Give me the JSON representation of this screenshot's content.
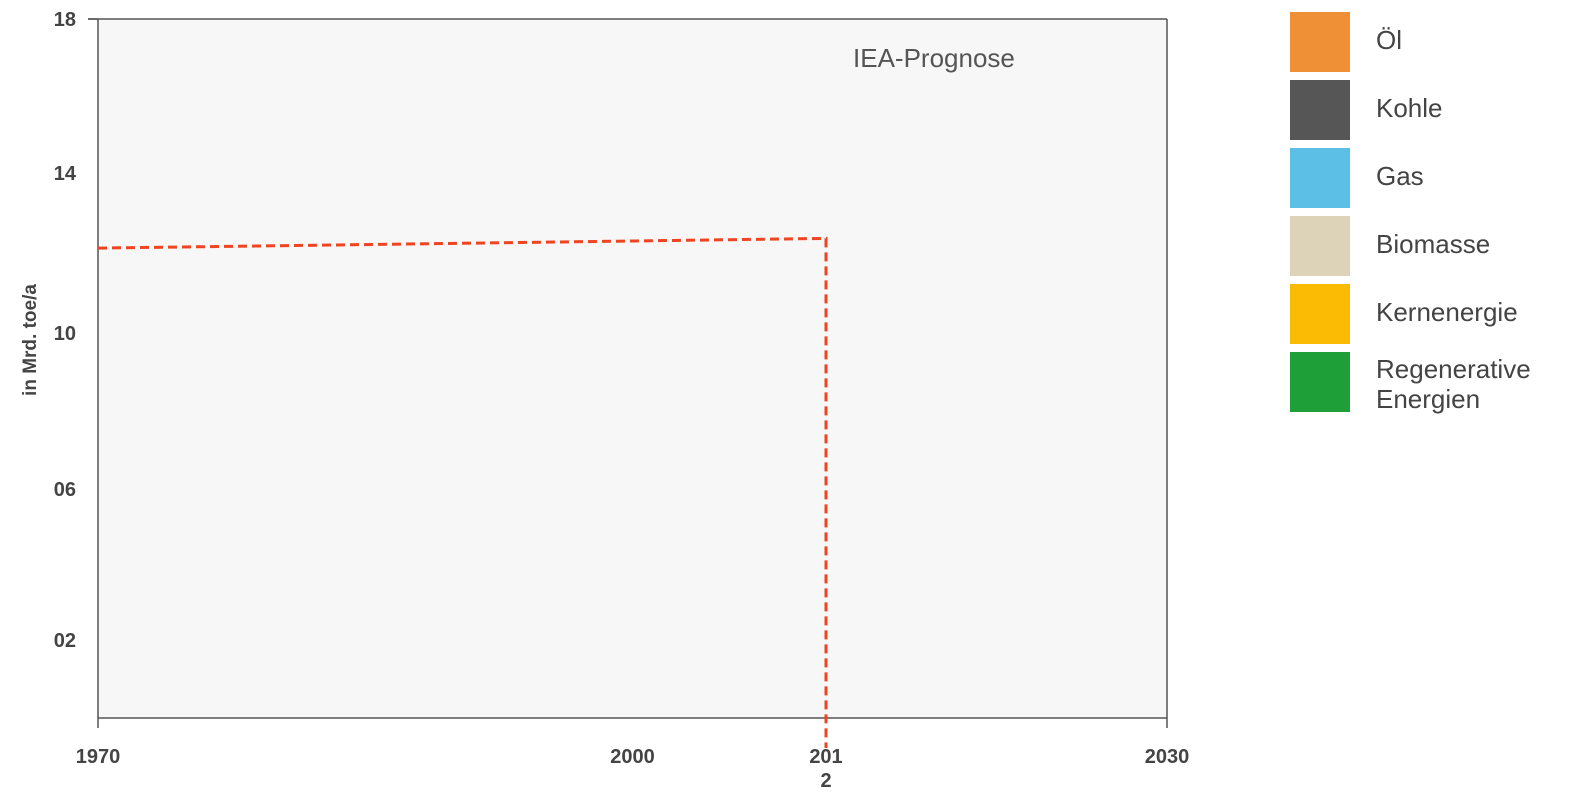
{
  "chart_data": {
    "type": "line",
    "title": "",
    "ylabel": "in Mrd. toe/a",
    "xlabel": "",
    "y_ticks": [
      "18",
      "14",
      "10",
      "06",
      "02"
    ],
    "x_ticks": [
      {
        "label": "1970",
        "x": 1970
      },
      {
        "label": "2000",
        "x": 2000
      },
      {
        "label": "2012",
        "x": 2012,
        "display": [
          "201",
          "2"
        ]
      },
      {
        "label": "2030",
        "x": 2030
      }
    ],
    "xlim": [
      1970,
      2030
    ],
    "ylim": [
      0,
      18
    ],
    "annotation": "IEA-Prognose",
    "reference_line": {
      "style": "dashed",
      "color": "#ee4422",
      "points": [
        {
          "x": 1970,
          "y": 12.1
        },
        {
          "x": 2011,
          "y": 12.35
        }
      ],
      "vertical_at_x": 2011
    },
    "legend": [
      {
        "name": "Öl",
        "color": "#f09036"
      },
      {
        "name": "Kohle",
        "color": "#565656"
      },
      {
        "name": "Gas",
        "color": "#5bbfe6"
      },
      {
        "name": "Biomasse",
        "color": "#ddd3b9"
      },
      {
        "name": "Kernenergie",
        "color": "#fbbb05"
      },
      {
        "name": "Regenerative Energien",
        "lines": [
          "Regenerative",
          "Energien"
        ],
        "color": "#1e9f38"
      }
    ],
    "plot_background": "#f7f7f7",
    "axis_color": "#555555",
    "legend_position": "right"
  }
}
